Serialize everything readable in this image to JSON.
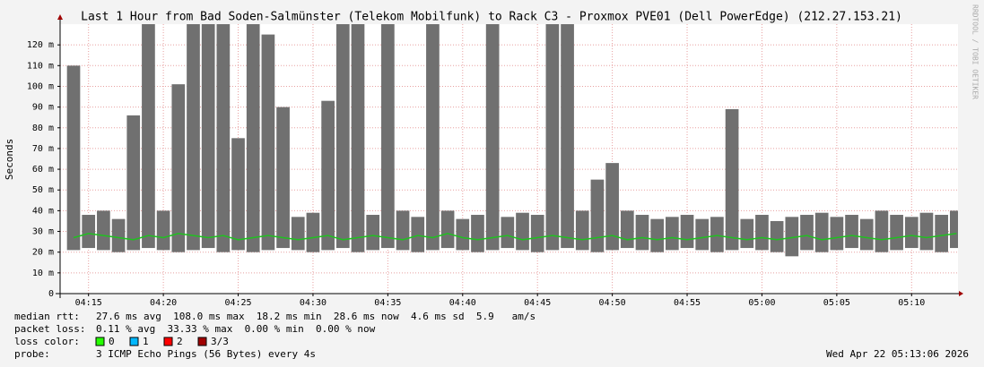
{
  "chart_data": {
    "type": "smokeping",
    "title": "Last 1 Hour from Bad Soden-Salmünster (Telekom Mobilfunk) to Rack C3 - Proxmox PVE01 (Dell PowerEdge) (212.27.153.21)",
    "y_label": "Seconds",
    "side_note": "RRDTOOL / TOBI OETIKER",
    "xlim": [
      "04:13:06",
      "05:13:06"
    ],
    "xticks": [
      "04:15",
      "04:20",
      "04:25",
      "04:30",
      "04:35",
      "04:40",
      "04:45",
      "04:50",
      "04:55",
      "05:00",
      "05:05",
      "05:10"
    ],
    "ylim": [
      0,
      0.13
    ],
    "yticks": [
      0,
      {
        "value": 0.01,
        "label": "10 m"
      },
      {
        "value": 0.02,
        "label": "20 m"
      },
      {
        "value": 0.03,
        "label": "30 m"
      },
      {
        "value": 0.04,
        "label": "40 m"
      },
      {
        "value": 0.05,
        "label": "50 m"
      },
      {
        "value": 0.06,
        "label": "60 m"
      },
      {
        "value": 0.07,
        "label": "70 m"
      },
      {
        "value": 0.08,
        "label": "80 m"
      },
      {
        "value": 0.09,
        "label": "90 m"
      },
      {
        "value": 0.1,
        "label": "100 m"
      },
      {
        "value": 0.11,
        "label": "110 m"
      },
      {
        "value": 0.12,
        "label": "120 m"
      }
    ],
    "grid": true,
    "x": [
      "04:14",
      "04:15",
      "04:16",
      "04:17",
      "04:18",
      "04:19",
      "04:20",
      "04:21",
      "04:22",
      "04:23",
      "04:24",
      "04:25",
      "04:26",
      "04:27",
      "04:28",
      "04:29",
      "04:30",
      "04:31",
      "04:32",
      "04:33",
      "04:34",
      "04:35",
      "04:36",
      "04:37",
      "04:38",
      "04:39",
      "04:40",
      "04:41",
      "04:42",
      "04:43",
      "04:44",
      "04:45",
      "04:46",
      "04:47",
      "04:48",
      "04:49",
      "04:50",
      "04:51",
      "04:52",
      "04:53",
      "04:54",
      "04:55",
      "04:56",
      "04:57",
      "04:58",
      "04:59",
      "05:00",
      "05:01",
      "05:02",
      "05:03",
      "05:04",
      "05:05",
      "05:06",
      "05:07",
      "05:08",
      "05:09",
      "05:10",
      "05:11",
      "05:12",
      "05:13"
    ],
    "median": [
      0.027,
      0.029,
      0.028,
      0.027,
      0.026,
      0.028,
      0.027,
      0.029,
      0.028,
      0.027,
      0.028,
      0.026,
      0.027,
      0.028,
      0.027,
      0.026,
      0.027,
      0.028,
      0.026,
      0.027,
      0.028,
      0.027,
      0.026,
      0.028,
      0.027,
      0.029,
      0.027,
      0.026,
      0.027,
      0.028,
      0.026,
      0.027,
      0.028,
      0.027,
      0.026,
      0.027,
      0.028,
      0.026,
      0.027,
      0.026,
      0.027,
      0.026,
      0.027,
      0.028,
      0.027,
      0.026,
      0.027,
      0.026,
      0.027,
      0.028,
      0.026,
      0.027,
      0.028,
      0.027,
      0.026,
      0.027,
      0.028,
      0.027,
      0.028,
      0.029
    ],
    "smoke_min": [
      0.021,
      0.022,
      0.021,
      0.02,
      0.021,
      0.022,
      0.021,
      0.02,
      0.021,
      0.022,
      0.02,
      0.021,
      0.02,
      0.021,
      0.022,
      0.021,
      0.02,
      0.021,
      0.022,
      0.02,
      0.021,
      0.022,
      0.021,
      0.02,
      0.021,
      0.022,
      0.021,
      0.02,
      0.021,
      0.022,
      0.021,
      0.02,
      0.021,
      0.022,
      0.021,
      0.02,
      0.021,
      0.022,
      0.021,
      0.02,
      0.021,
      0.022,
      0.021,
      0.02,
      0.021,
      0.022,
      0.021,
      0.02,
      0.018,
      0.021,
      0.02,
      0.021,
      0.022,
      0.021,
      0.02,
      0.021,
      0.022,
      0.021,
      0.02,
      0.022
    ],
    "smoke_max": [
      0.11,
      0.038,
      0.04,
      0.036,
      0.086,
      0.14,
      0.04,
      0.101,
      0.14,
      0.14,
      0.14,
      0.075,
      0.14,
      0.125,
      0.09,
      0.037,
      0.039,
      0.093,
      0.14,
      0.14,
      0.038,
      0.14,
      0.04,
      0.037,
      0.14,
      0.04,
      0.036,
      0.038,
      0.14,
      0.037,
      0.039,
      0.038,
      0.14,
      0.14,
      0.04,
      0.055,
      0.063,
      0.04,
      0.038,
      0.036,
      0.037,
      0.038,
      0.036,
      0.037,
      0.089,
      0.036,
      0.038,
      0.035,
      0.037,
      0.038,
      0.039,
      0.037,
      0.038,
      0.036,
      0.04,
      0.038,
      0.037,
      0.039,
      0.038,
      0.04
    ],
    "median_color": "#20c020",
    "smoke_color": "#707070",
    "stats": [
      {
        "label": "median rtt:",
        "text": "27.6 ms avg  108.0 ms max  18.2 ms min  28.6 ms now  4.6 ms sd  5.9   am/s"
      },
      {
        "label": "packet loss:",
        "text": "0.11 % avg  33.33 % max  0.00 % min  0.00 % now"
      }
    ],
    "loss_label": "loss color:",
    "loss_colors": [
      {
        "label": "0",
        "color": "#26ff00"
      },
      {
        "label": "1",
        "color": "#00b8ff"
      },
      {
        "label": "2",
        "color": "#ff0000"
      },
      {
        "label": "3/3",
        "color": "#a00000"
      }
    ],
    "probe_label": "probe:",
    "probe": "3 ICMP Echo Pings (56 Bytes) every 4s",
    "timestamp": "Wed Apr 22 05:13:06 2026"
  }
}
